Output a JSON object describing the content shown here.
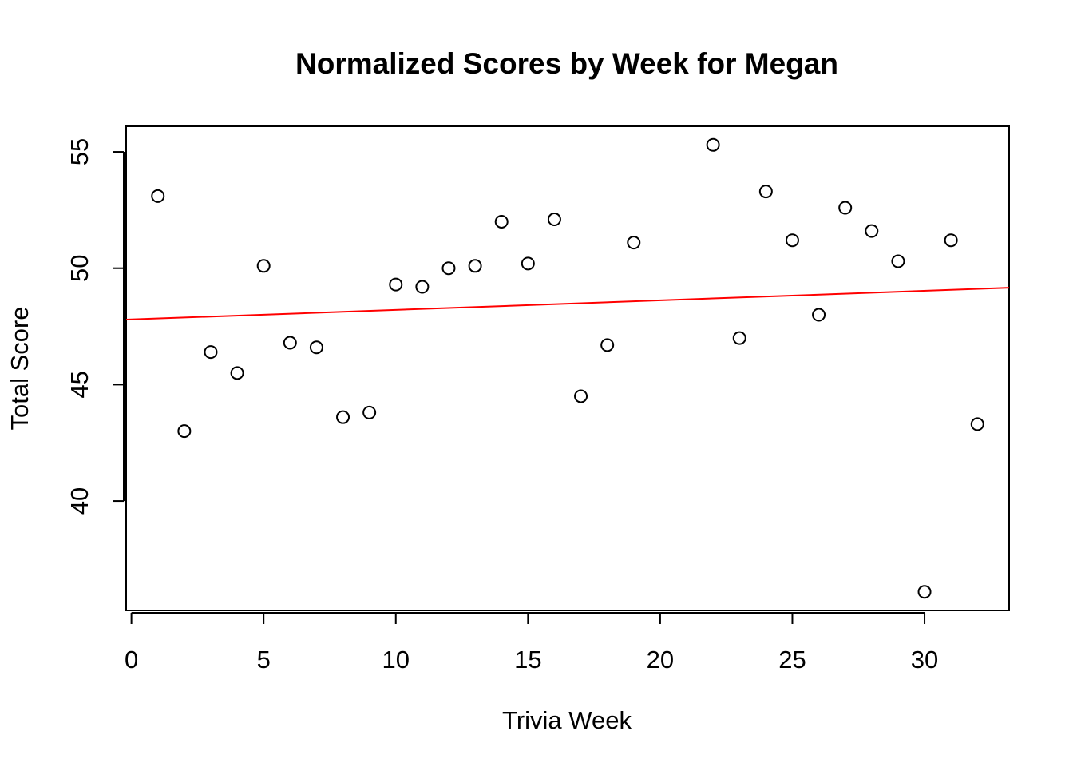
{
  "chart_data": {
    "type": "scatter",
    "title": "Normalized Scores by Week for Megan",
    "xlabel": "Trivia Week",
    "ylabel": "Total Score",
    "xlim": [
      -0.2,
      33.2
    ],
    "ylim": [
      35.3,
      56.1
    ],
    "x_ticks": [
      0,
      5,
      10,
      15,
      20,
      25,
      30
    ],
    "y_ticks": [
      40,
      45,
      50,
      55
    ],
    "grid": false,
    "legend": "none",
    "series": [
      {
        "marker": "open-circle",
        "color": "#000000",
        "x": [
          1,
          2,
          3,
          4,
          5,
          6,
          7,
          8,
          9,
          10,
          11,
          12,
          13,
          14,
          15,
          16,
          17,
          18,
          19,
          22,
          23,
          24,
          25,
          26,
          27,
          28,
          29,
          30,
          31,
          32
        ],
        "y": [
          53.1,
          43.0,
          46.4,
          45.5,
          50.1,
          46.8,
          46.6,
          43.6,
          43.8,
          49.3,
          49.2,
          50.0,
          50.1,
          52.0,
          50.2,
          52.1,
          44.5,
          46.7,
          51.1,
          55.3,
          47.0,
          53.3,
          51.2,
          48.0,
          52.6,
          51.6,
          50.3,
          36.1,
          51.2,
          43.3
        ]
      }
    ],
    "trend_line": {
      "color": "#ff0000",
      "intercept": 47.8,
      "slope": 0.041
    }
  }
}
